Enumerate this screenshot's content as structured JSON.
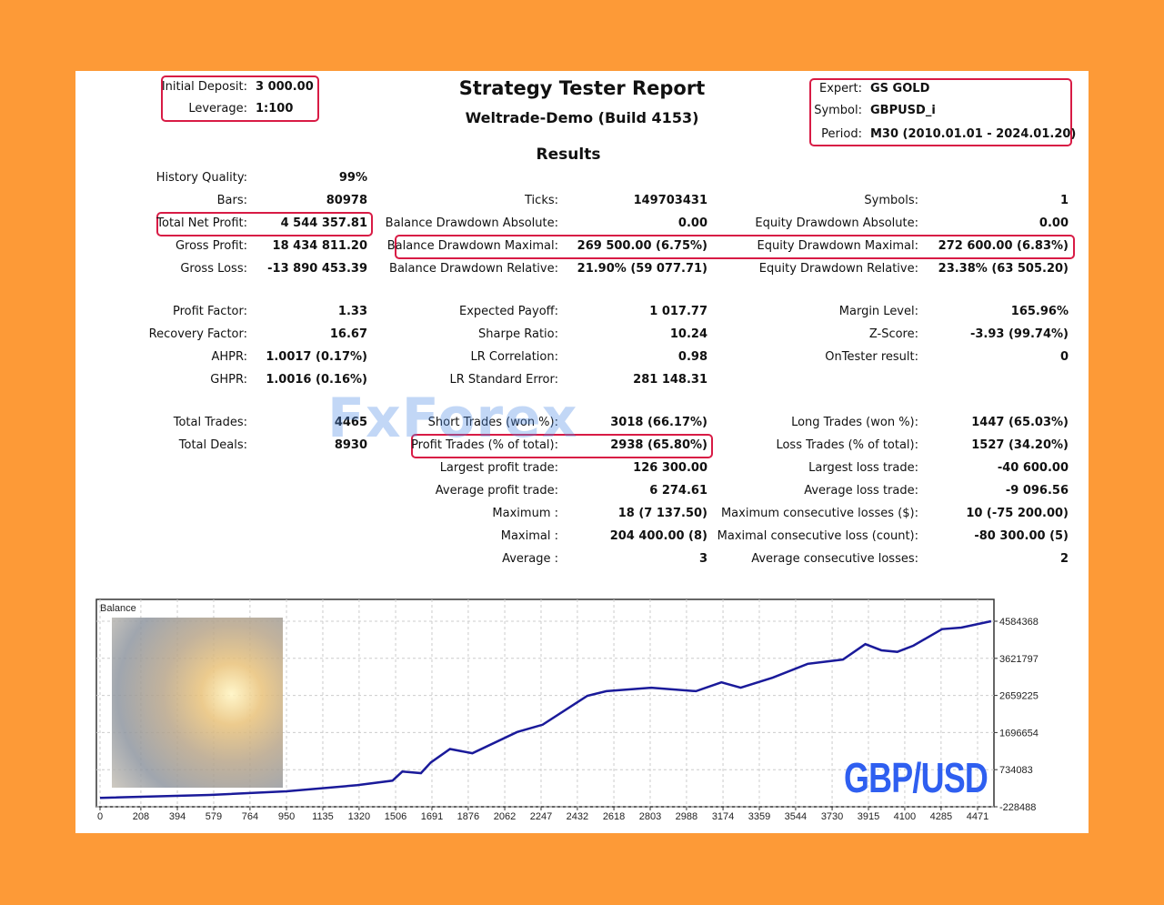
{
  "header": {
    "title": "Strategy Tester Report",
    "subtitle": "Weltrade-Demo (Build 4153)",
    "results": "Results",
    "initial_deposit_label": "Initial Deposit:",
    "initial_deposit": "3 000.00",
    "leverage_label": "Leverage:",
    "leverage": "1:100",
    "expert_label": "Expert:",
    "expert": "GS GOLD",
    "symbol_label": "Symbol:",
    "symbol": "GBPUSD_i",
    "period_label": "Period:",
    "period": "M30 (2010.01.01 - 2024.01.20)"
  },
  "watermark": "FxForex",
  "rows": [
    {
      "y": 196,
      "c": [
        [
          "History Quality:",
          "99%"
        ],
        null,
        null
      ]
    },
    {
      "y": 221,
      "c": [
        [
          "Bars:",
          "80978"
        ],
        [
          "Ticks:",
          "149703431"
        ],
        [
          "Symbols:",
          "1"
        ]
      ]
    },
    {
      "y": 246,
      "c": [
        [
          "Total Net Profit:",
          "4 544 357.81"
        ],
        [
          "Balance Drawdown Absolute:",
          "0.00"
        ],
        [
          "Equity Drawdown Absolute:",
          "0.00"
        ]
      ]
    },
    {
      "y": 271,
      "c": [
        [
          "Gross Profit:",
          "18 434 811.20"
        ],
        [
          "Balance Drawdown Maximal:",
          "269 500.00 (6.75%)"
        ],
        [
          "Equity Drawdown Maximal:",
          "272 600.00 (6.83%)"
        ]
      ]
    },
    {
      "y": 296,
      "c": [
        [
          "Gross Loss:",
          "-13 890 453.39"
        ],
        [
          "Balance Drawdown Relative:",
          "21.90% (59 077.71)"
        ],
        [
          "Equity Drawdown Relative:",
          "23.38% (63 505.20)"
        ]
      ]
    },
    {
      "y": 343,
      "c": [
        [
          "Profit Factor:",
          "1.33"
        ],
        [
          "Expected Payoff:",
          "1 017.77"
        ],
        [
          "Margin Level:",
          "165.96%"
        ]
      ]
    },
    {
      "y": 368,
      "c": [
        [
          "Recovery Factor:",
          "16.67"
        ],
        [
          "Sharpe Ratio:",
          "10.24"
        ],
        [
          "Z-Score:",
          "-3.93 (99.74%)"
        ]
      ]
    },
    {
      "y": 393,
      "c": [
        [
          "AHPR:",
          "1.0017 (0.17%)"
        ],
        [
          "LR Correlation:",
          "0.98"
        ],
        [
          "OnTester result:",
          "0"
        ]
      ]
    },
    {
      "y": 418,
      "c": [
        [
          "GHPR:",
          "1.0016 (0.16%)"
        ],
        [
          "LR Standard Error:",
          "281 148.31"
        ],
        null
      ]
    },
    {
      "y": 465,
      "c": [
        [
          "Total Trades:",
          "4465"
        ],
        [
          "Short Trades (won %):",
          "3018 (66.17%)"
        ],
        [
          "Long Trades (won %):",
          "1447 (65.03%)"
        ]
      ]
    },
    {
      "y": 490,
      "c": [
        [
          "Total Deals:",
          "8930"
        ],
        [
          "Profit Trades (% of total):",
          "2938 (65.80%)"
        ],
        [
          "Loss Trades (% of total):",
          "1527 (34.20%)"
        ]
      ]
    },
    {
      "y": 515,
      "c": [
        null,
        [
          "Largest profit trade:",
          "126 300.00"
        ],
        [
          "Largest loss trade:",
          "-40 600.00"
        ]
      ]
    },
    {
      "y": 540,
      "c": [
        null,
        [
          "Average profit trade:",
          "6 274.61"
        ],
        [
          "Average loss trade:",
          "-9 096.56"
        ]
      ]
    },
    {
      "y": 565,
      "c": [
        null,
        [
          "Maximum :",
          "18 (7 137.50)"
        ],
        [
          "Maximum consecutive losses ($):",
          "10 (-75 200.00)"
        ]
      ]
    },
    {
      "y": 590,
      "c": [
        null,
        [
          "Maximal :",
          "204 400.00 (8)"
        ],
        [
          "Maximal consecutive loss (count):",
          "-80 300.00 (5)"
        ]
      ]
    },
    {
      "y": 615,
      "c": [
        null,
        [
          "Average :",
          "3"
        ],
        [
          "Average consecutive losses:",
          "2"
        ]
      ]
    }
  ],
  "chart_data": {
    "type": "line",
    "title": "Balance",
    "overlay_text": "GBP/USD",
    "xlim": [
      0,
      4555
    ],
    "ylim": [
      -228488,
      4584368
    ],
    "x_ticks": [
      0,
      208,
      394,
      579,
      764,
      950,
      1135,
      1320,
      1506,
      1691,
      1876,
      2062,
      2247,
      2432,
      2618,
      2803,
      2988,
      3174,
      3359,
      3544,
      3730,
      3915,
      4100,
      4285,
      4471
    ],
    "y_ticks": [
      4584368,
      3621797,
      2659225,
      1696654,
      734083,
      -228488
    ],
    "series": [
      {
        "name": "Balance",
        "color": "#1a1a9a",
        "x": [
          0,
          560,
          950,
          1310,
          1490,
          1540,
          1635,
          1685,
          1783,
          1897,
          2125,
          2255,
          2483,
          2580,
          2808,
          3036,
          3166,
          3264,
          3427,
          3606,
          3785,
          3899,
          3981,
          4062,
          4144,
          4290,
          4388,
          4540
        ],
        "y": [
          3000,
          78000,
          172000,
          331000,
          449000,
          685000,
          644000,
          920000,
          1270000,
          1160000,
          1710000,
          1900000,
          2650000,
          2770000,
          2860000,
          2770000,
          3000000,
          2860000,
          3120000,
          3480000,
          3590000,
          3990000,
          3830000,
          3790000,
          3950000,
          4380000,
          4420000,
          4584368
        ]
      }
    ]
  }
}
